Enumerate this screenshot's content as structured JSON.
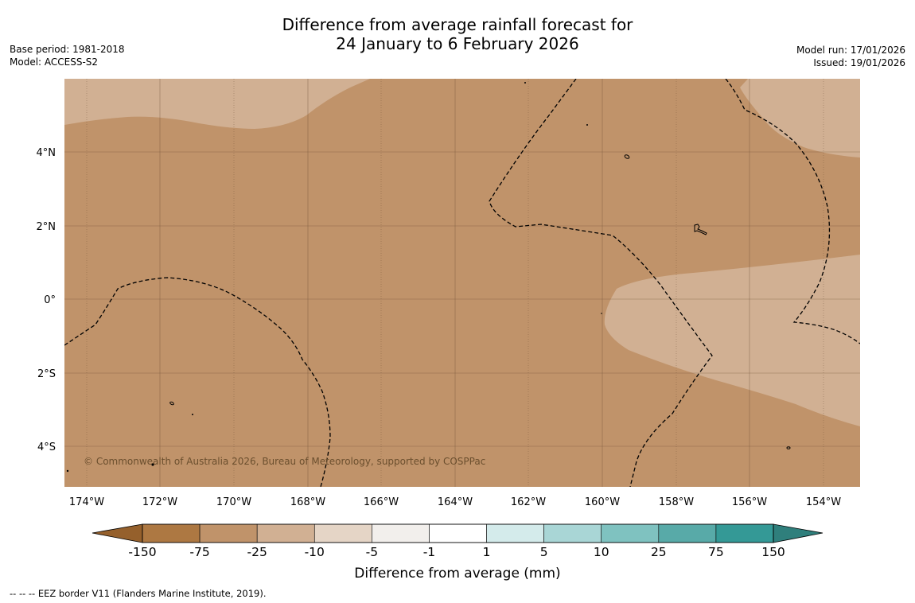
{
  "title": {
    "line1": "Difference from average rainfall forecast for",
    "line2": "24 January to 6 February 2026"
  },
  "meta_left": {
    "base_period": "Base period: 1981-2018",
    "model": "Model: ACCESS-S2"
  },
  "meta_right": {
    "model_run": "Model run: 17/01/2026",
    "issued": "Issued: 19/01/2026"
  },
  "map": {
    "lat_labels": [
      "4°N",
      "2°N",
      "0°",
      "2°S",
      "4°S"
    ],
    "lon_labels": [
      "174°W",
      "172°W",
      "170°W",
      "168°W",
      "166°W",
      "164°W",
      "162°W",
      "160°W",
      "158°W",
      "156°W",
      "154°W"
    ],
    "copyright": "© Commonwealth of Australia 2026, Bureau of Meteorology, supported by COSPPac",
    "colors": {
      "dry_25_75": "#c0936a",
      "dry_10_25": "#d1b093"
    }
  },
  "colorbar": {
    "title": "Difference from average (mm)",
    "tick_labels": [
      "-150",
      "-75",
      "-25",
      "-10",
      "-5",
      "-1",
      "1",
      "5",
      "10",
      "25",
      "75",
      "150"
    ],
    "low_extend_color": "#95602c",
    "high_extend_color": "#2f7f7c",
    "bin_colors": [
      "#ad7842",
      "#c0936a",
      "#d1b093",
      "#e5d5c6",
      "#f2efec",
      "#ffffff",
      "#d4ebeb",
      "#a9d6d6",
      "#7fc2c0",
      "#58aaa8",
      "#349996"
    ]
  },
  "footer": {
    "legend_line": "--  --  -- EEZ border V11 (Flanders Marine Institute, 2019)."
  }
}
